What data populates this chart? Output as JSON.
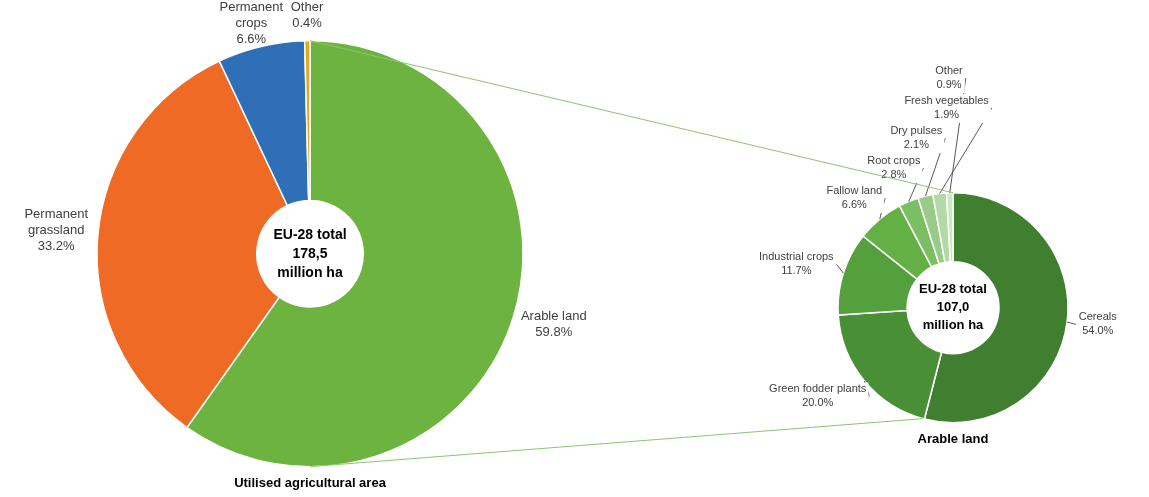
{
  "chart_data": [
    {
      "type": "donut",
      "title": "Utilised agricultural area",
      "categories": [
        "Arable land",
        "Permanent grassland",
        "Permanent crops",
        "Other"
      ],
      "values": [
        59.8,
        33.2,
        6.6,
        0.4
      ],
      "colors": [
        "#6db33f",
        "#ee6a25",
        "#2e6fb7",
        "#e0a92c"
      ],
      "value_labels": [
        "59.8%",
        "33.2%",
        "6.6%",
        "0.4%"
      ],
      "annotations": [
        "EU-28 total 178,5 million ha"
      ]
    },
    {
      "type": "donut",
      "title": "Arable land",
      "categories": [
        "Cereals",
        "Green fodder plants",
        "Industrial crops",
        "Fallow land",
        "Root crops",
        "Dry pulses",
        "Fresh vegetables",
        "Other"
      ],
      "values": [
        54.0,
        20.0,
        11.7,
        6.6,
        2.8,
        2.1,
        1.9,
        0.9
      ],
      "colors": [
        "#3f7f2f",
        "#488f36",
        "#53a03d",
        "#63b145",
        "#7cbf62",
        "#98cc86",
        "#b3d9a6",
        "#cde6c3"
      ],
      "value_labels": [
        "54.0%",
        "20.0%",
        "11.7%",
        "6.6%",
        "2.8%",
        "2.1%",
        "1.9%",
        "0.9%"
      ],
      "annotations": [
        "EU-28 total 107,0 million ha"
      ]
    }
  ]
}
